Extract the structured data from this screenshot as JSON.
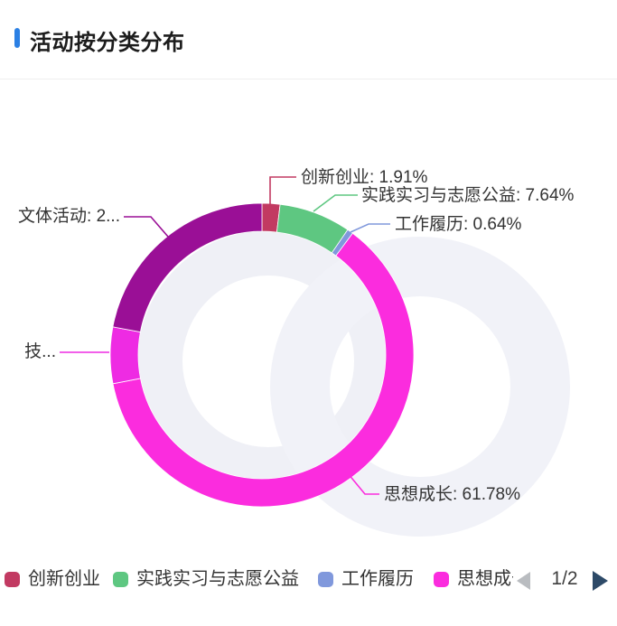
{
  "header": {
    "title": "活动按分类分布"
  },
  "chart_data": {
    "type": "pie",
    "title": "活动按分类分布",
    "shape": "donut",
    "start_angle_deg": 90,
    "direction": "clockwise",
    "legend_position": "bottom",
    "legend_page": "1/2",
    "segments": [
      {
        "name": "创新创业",
        "pct": 1.91,
        "color": "#C23A62",
        "label": "创新创业: 1.91%"
      },
      {
        "name": "实践实习与志愿公益",
        "pct": 7.64,
        "color": "#5EC781",
        "label": "实践实习与志愿公益: 7.64%"
      },
      {
        "name": "工作履历",
        "pct": 0.64,
        "color": "#8098DC",
        "label": "工作履历: 0.64%"
      },
      {
        "name": "思想成长",
        "pct": 61.78,
        "color": "#FB2CDE",
        "label": "思想成长: 61.78%"
      },
      {
        "name": "技...",
        "pct": 6.0,
        "color": "#EE2BE3",
        "label": "技..."
      },
      {
        "name": "文体活动",
        "pct": 22.03,
        "color": "#9A0F96",
        "label": "文体活动: 2..."
      }
    ]
  },
  "legend": {
    "items": [
      {
        "label": "创新创业",
        "color": "#C23A62"
      },
      {
        "label": "实践实习与志愿公益",
        "color": "#5EC781"
      },
      {
        "label": "工作履历",
        "color": "#8098DC"
      },
      {
        "label": "思想成长",
        "color": "#FB2CDE"
      }
    ],
    "page_indicator": "1/2"
  },
  "colors": {
    "title_accent": "#2B80E4",
    "label_text": "#333333",
    "backdrop_ring": "#EFF0F6",
    "pager_prev": "#B9BCC0",
    "pager_next": "#2D4A68"
  }
}
